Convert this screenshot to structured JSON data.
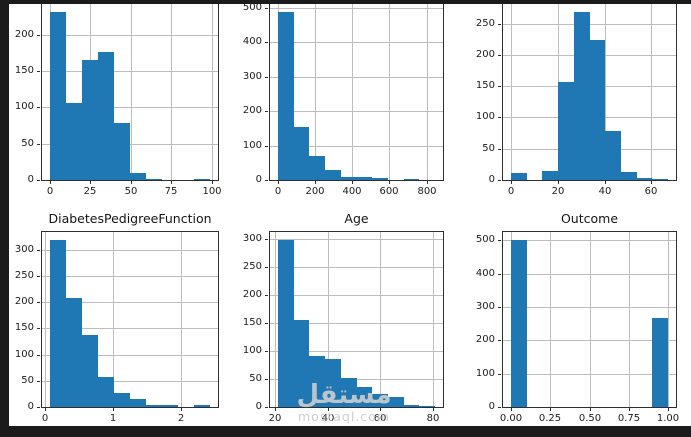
{
  "style": {
    "bar_color": "#1f77b4",
    "grid_color": "#bdbdbd",
    "frame_color": "#2e2e2e",
    "text_color": "#1c1c1c",
    "border_band_color": "#1b1b1b",
    "background": "#ffffff"
  },
  "watermark": {
    "arabic": "مستقل",
    "latin": "mostaql.com"
  },
  "chart_data": [
    {
      "id": "top-left",
      "type": "histogram",
      "title": "",
      "bin_start": 0,
      "bin_width": 9.9,
      "counts": [
        231,
        106,
        165,
        176,
        78,
        9,
        2,
        0,
        0,
        1
      ],
      "xlim": [
        -4.95,
        103.95
      ],
      "ylim": [
        0,
        242.6
      ],
      "xticks": {
        "values": [
          0,
          25,
          50,
          75,
          100
        ],
        "labels": [
          "0",
          "25",
          "50",
          "75",
          "100"
        ]
      },
      "yticks": {
        "values": [
          0,
          50,
          100,
          150,
          200
        ],
        "labels": [
          "0",
          "50",
          "100",
          "150",
          "200"
        ]
      },
      "grid": true,
      "legend": "none"
    },
    {
      "id": "top-middle",
      "type": "histogram",
      "title": "",
      "bin_start": 0,
      "bin_width": 84.6,
      "counts": [
        487,
        155,
        70,
        30,
        8,
        10,
        5,
        0,
        2,
        1
      ],
      "xlim": [
        -42.3,
        888.3
      ],
      "ylim": [
        0,
        511.4
      ],
      "xticks": {
        "values": [
          0,
          200,
          400,
          600,
          800
        ],
        "labels": [
          "0",
          "200",
          "400",
          "600",
          "800"
        ]
      },
      "yticks": {
        "values": [
          0,
          100,
          200,
          300,
          400,
          500
        ],
        "labels": [
          "0",
          "100",
          "200",
          "300",
          "400",
          "500"
        ]
      },
      "grid": true,
      "legend": "none"
    },
    {
      "id": "top-right",
      "type": "histogram",
      "title": "",
      "bin_start": 0,
      "bin_width": 6.71,
      "counts": [
        11,
        0,
        15,
        156,
        268,
        224,
        78,
        12,
        3,
        2
      ],
      "xlim": [
        -3.36,
        70.46
      ],
      "ylim": [
        0,
        281.4
      ],
      "xticks": {
        "values": [
          0,
          20,
          40,
          60
        ],
        "labels": [
          "0",
          "20",
          "40",
          "60"
        ]
      },
      "yticks": {
        "values": [
          0,
          50,
          100,
          150,
          200,
          250
        ],
        "labels": [
          "0",
          "50",
          "100",
          "150",
          "200",
          "250"
        ]
      },
      "grid": true,
      "legend": "none"
    },
    {
      "id": "bottom-left",
      "type": "histogram",
      "title": "DiabetesPedigreeFunction",
      "bin_start": 0.078,
      "bin_width": 0.2342,
      "counts": [
        318,
        208,
        137,
        58,
        26,
        15,
        4,
        3,
        0,
        4
      ],
      "xlim": [
        -0.039,
        2.537
      ],
      "ylim": [
        0,
        333.9
      ],
      "xticks": {
        "values": [
          0,
          1,
          2
        ],
        "labels": [
          "0",
          "1",
          "2"
        ]
      },
      "yticks": {
        "values": [
          0,
          50,
          100,
          150,
          200,
          250,
          300
        ],
        "labels": [
          "0",
          "50",
          "100",
          "150",
          "200",
          "250",
          "300"
        ]
      },
      "grid": true,
      "legend": "none"
    },
    {
      "id": "bottom-middle",
      "type": "histogram",
      "title": "Age",
      "bin_start": 21,
      "bin_width": 6,
      "counts": [
        298,
        156,
        92,
        86,
        51,
        35,
        24,
        17,
        4,
        1
      ],
      "xlim": [
        18,
        84
      ],
      "ylim": [
        0,
        312.9
      ],
      "xticks": {
        "values": [
          20,
          40,
          60,
          80
        ],
        "labels": [
          "20",
          "40",
          "60",
          "80"
        ]
      },
      "yticks": {
        "values": [
          0,
          50,
          100,
          150,
          200,
          250,
          300
        ],
        "labels": [
          "0",
          "50",
          "100",
          "150",
          "200",
          "250",
          "300"
        ]
      },
      "grid": true,
      "legend": "none"
    },
    {
      "id": "bottom-right",
      "type": "histogram",
      "title": "Outcome",
      "bin_start": 0,
      "bin_width": 0.1,
      "counts": [
        500,
        0,
        0,
        0,
        0,
        0,
        0,
        0,
        0,
        268
      ],
      "xlim": [
        -0.05,
        1.05
      ],
      "ylim": [
        0,
        525
      ],
      "xticks": {
        "values": [
          0,
          0.25,
          0.5,
          0.75,
          1.0
        ],
        "labels": [
          "0.00",
          "0.25",
          "0.50",
          "0.75",
          "1.00"
        ]
      },
      "yticks": {
        "values": [
          0,
          100,
          200,
          300,
          400,
          500
        ],
        "labels": [
          "0",
          "100",
          "200",
          "300",
          "400",
          "500"
        ]
      },
      "grid": true,
      "legend": "none"
    }
  ]
}
